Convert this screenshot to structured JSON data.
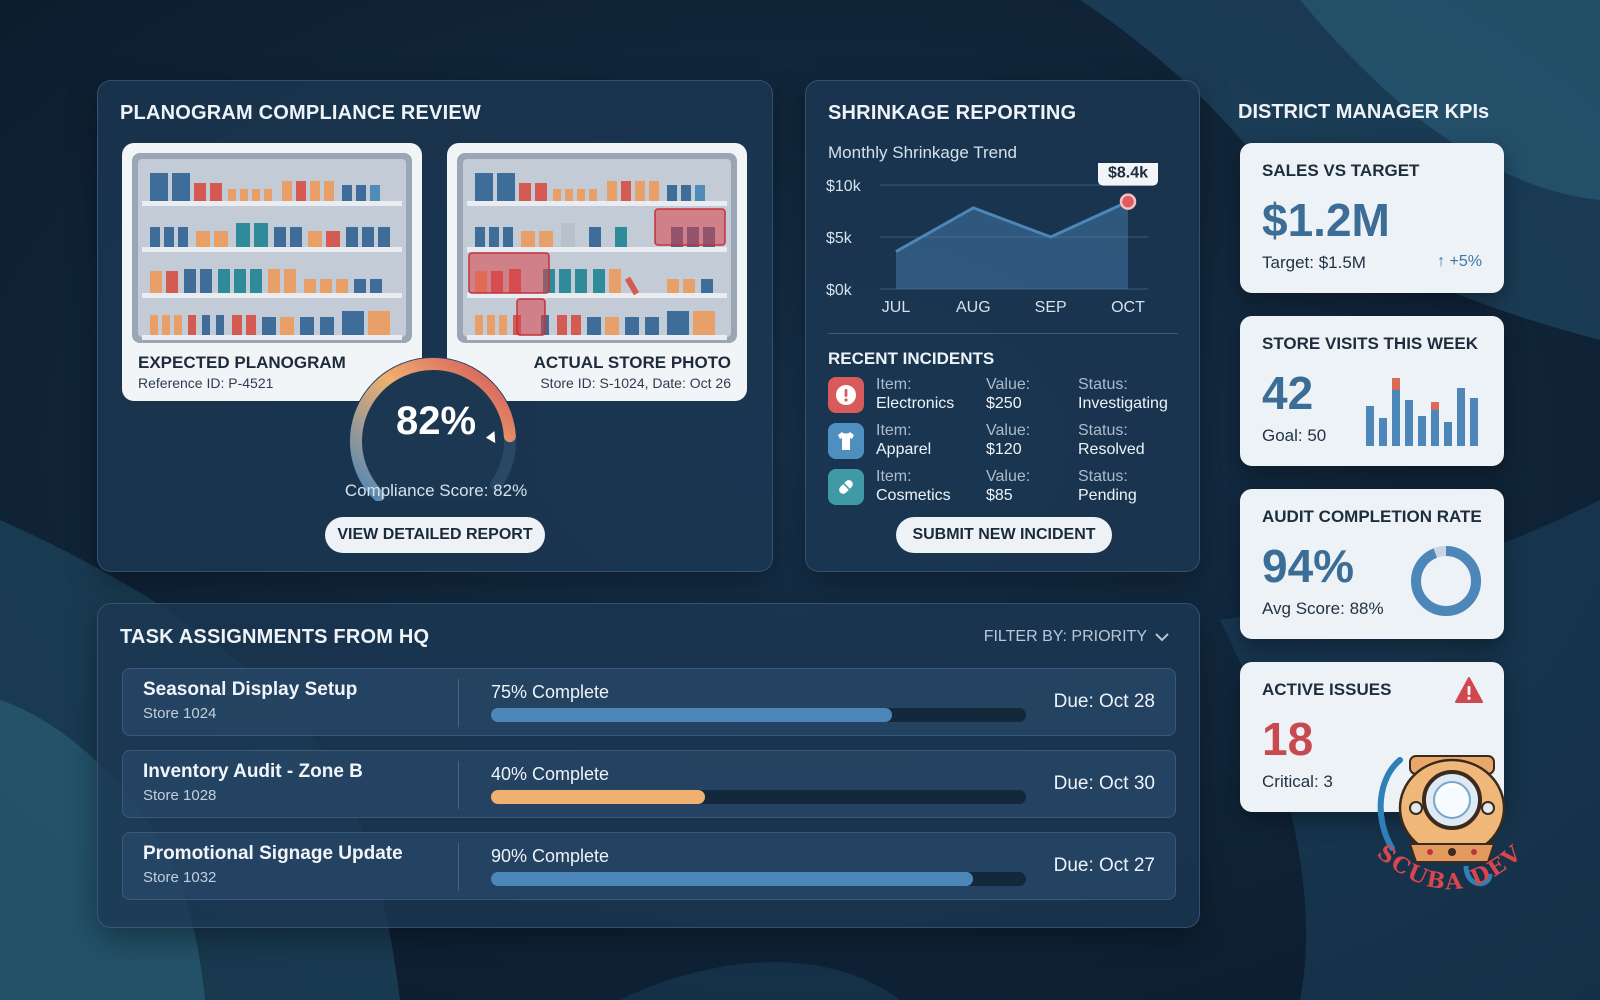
{
  "colors": {
    "background": "#0f2236",
    "accent_blue": "#4d86b8",
    "accent_orange": "#f0b070",
    "alert_red": "#d05058",
    "kpi_value": "#3c6d96"
  },
  "planogram": {
    "title": "PLANOGRAM COMPLIANCE REVIEW",
    "expected": {
      "title": "EXPECTED PLANOGRAM",
      "subtitle": "Reference ID: P-4521"
    },
    "actual": {
      "title": "ACTUAL STORE PHOTO",
      "subtitle": "Store ID: S-1024, Date: Oct 26"
    },
    "score_value": "82%",
    "score_fraction": 0.82,
    "score_label": "Compliance Score: 82%",
    "report_button": "VIEW DETAILED REPORT"
  },
  "shrinkage": {
    "title": "SHRINKAGE REPORTING",
    "trend_label": "Monthly Shrinkage Trend",
    "incidents_title": "RECENT INCIDENTS",
    "incidents": [
      {
        "icon": "alert-icon",
        "item_key": "Item:",
        "item": "Electronics",
        "value_key": "Value:",
        "value": "$250",
        "status_key": "Status:",
        "status": "Investigating"
      },
      {
        "icon": "shirt-icon",
        "item_key": "Item:",
        "item": "Apparel",
        "value_key": "Value:",
        "value": "$120",
        "status_key": "Status:",
        "status": "Resolved"
      },
      {
        "icon": "pill-icon",
        "item_key": "Item:",
        "item": "Cosmetics",
        "value_key": "Value:",
        "value": "$85",
        "status_key": "Status:",
        "status": "Pending"
      }
    ],
    "submit_button": "SUBMIT NEW INCIDENT"
  },
  "chart_data": {
    "type": "area",
    "title": "Monthly Shrinkage Trend",
    "categories": [
      "JUL",
      "AUG",
      "SEP",
      "OCT"
    ],
    "series": [
      {
        "values": [
          3.6,
          7.8,
          5.0,
          8.4
        ]
      }
    ],
    "y_ticks": [
      "$10k",
      "$5k",
      "$0k"
    ],
    "ylim": [
      0,
      10
    ],
    "grid": true,
    "annotation": "$8.4k"
  },
  "tasks": {
    "title": "TASK ASSIGNMENTS FROM HQ",
    "filter_label": "FILTER BY: PRIORITY",
    "items": [
      {
        "name": "Seasonal Display Setup",
        "store": "Store 1024",
        "progress_label": "75% Complete",
        "progress": 0.75,
        "due": "Due: Oct 28",
        "color": "#4d86b8"
      },
      {
        "name": "Inventory Audit - Zone B",
        "store": "Store 1028",
        "progress_label": "40% Complete",
        "progress": 0.4,
        "due": "Due: Oct 30",
        "color": "#f0b070"
      },
      {
        "name": "Promotional Signage Update",
        "store": "Store 1032",
        "progress_label": "90% Complete",
        "progress": 0.9,
        "due": "Due: Oct 27",
        "color": "#4d86b8"
      }
    ]
  },
  "kpis": {
    "title": "DISTRICT MANAGER KPIs",
    "sales": {
      "label": "SALES VS TARGET",
      "value": "$1.2M",
      "sub": "Target: $1.5M",
      "delta": "↑ +5%"
    },
    "visits": {
      "label": "STORE VISITS THIS WEEK",
      "value": "42",
      "sub": "Goal: 50"
    },
    "audit": {
      "label": "AUDIT COMPLETION RATE",
      "value": "94%",
      "sub": "Avg Score: 88%",
      "fraction": 0.94
    },
    "issues": {
      "label": "ACTIVE ISSUES",
      "value": "18",
      "sub": "Critical: 3"
    }
  },
  "watermark": {
    "text": "SCUBA DEV"
  }
}
